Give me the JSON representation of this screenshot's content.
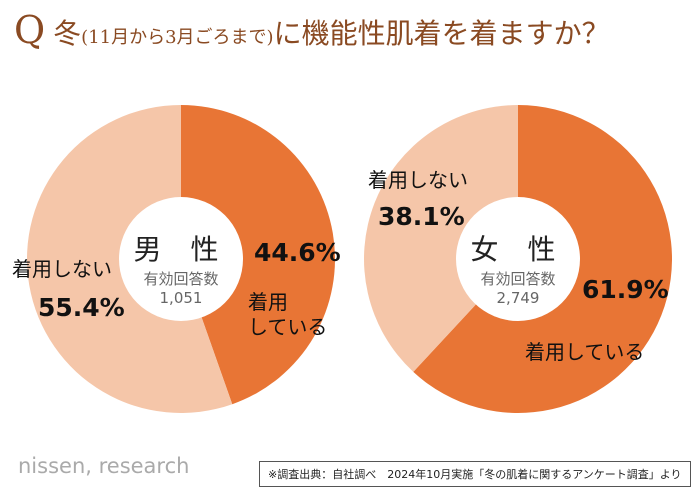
{
  "title": {
    "q": "Q",
    "a": "冬",
    "sub": "(11月から3月ごろまで)",
    "b": "に機能性肌着を着ますか？"
  },
  "colors": {
    "wear": "#E87535",
    "nowear": "#F5C6A9"
  },
  "chart_data": [
    {
      "type": "pie",
      "group": "男性",
      "label_group": "男 性",
      "respondents_label": "有効回答数",
      "respondents": "1,051",
      "slices": [
        {
          "name": "着用している",
          "value": 44.6,
          "pct": "44.6%"
        },
        {
          "name": "着用しない",
          "value": 55.4,
          "pct": "55.4%"
        }
      ]
    },
    {
      "type": "pie",
      "group": "女性",
      "label_group": "女 性",
      "respondents_label": "有効回答数",
      "respondents": "2,749",
      "slices": [
        {
          "name": "着用している",
          "value": 61.9,
          "pct": "61.9%"
        },
        {
          "name": "着用しない",
          "value": 38.1,
          "pct": "38.1%"
        }
      ]
    }
  ],
  "labels": {
    "wear_split_1": "着用",
    "wear_split_2": "している"
  },
  "footer": {
    "logo": "nissen, research",
    "source": "※調査出典：自社調べ　2024年10月実施「冬の肌着に関するアンケート調査」より"
  }
}
